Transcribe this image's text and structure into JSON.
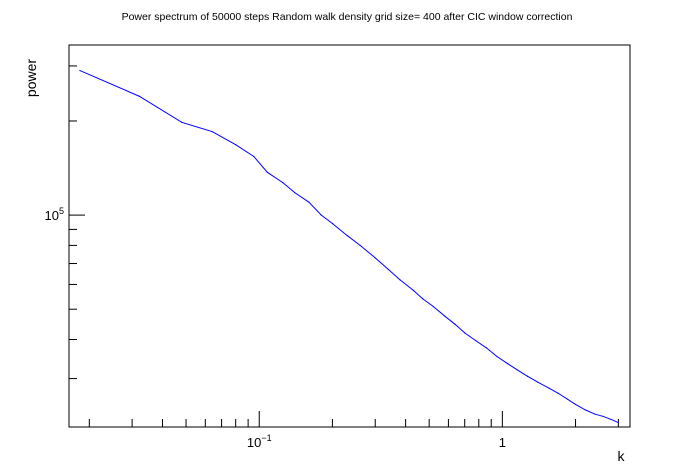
{
  "chart_data": {
    "type": "line",
    "title": "Power spectrum of 50000 steps Random walk density grid size= 400 after CIC window correction",
    "xlabel": "k",
    "ylabel": "power",
    "x_scale": "log",
    "y_scale": "log",
    "xlim": [
      0.0165,
      3.35
    ],
    "ylim": [
      21000,
      350000
    ],
    "x_tick_labels": [
      {
        "value": 0.1,
        "base": "10",
        "exp": "−1"
      },
      {
        "value": 1,
        "base": "1",
        "exp": ""
      }
    ],
    "y_tick_labels": [
      {
        "value": 100000,
        "base": "10",
        "exp": "5"
      }
    ],
    "grid": false,
    "legend": "none",
    "series": [
      {
        "color": "#0000ff",
        "x": [
          0.0183,
          0.0321,
          0.048,
          0.064,
          0.08,
          0.095,
          0.108,
          0.125,
          0.14,
          0.16,
          0.18,
          0.2,
          0.23,
          0.26,
          0.3,
          0.34,
          0.38,
          0.43,
          0.47,
          0.52,
          0.58,
          0.64,
          0.7,
          0.78,
          0.86,
          0.95,
          1.05,
          1.15,
          1.27,
          1.4,
          1.55,
          1.7,
          1.85,
          2.0,
          2.2,
          2.4,
          2.6,
          2.8,
          3.0
        ],
        "y": [
          290000,
          240000,
          198000,
          185000,
          168000,
          154000,
          137000,
          127000,
          118000,
          110000,
          100000,
          94000,
          86000,
          80000,
          73000,
          67000,
          62000,
          57500,
          54000,
          51000,
          47500,
          44700,
          42000,
          39600,
          37600,
          35300,
          33500,
          32000,
          30500,
          29200,
          28000,
          26900,
          25800,
          24800,
          23800,
          23100,
          22700,
          22200,
          21700
        ]
      }
    ]
  }
}
